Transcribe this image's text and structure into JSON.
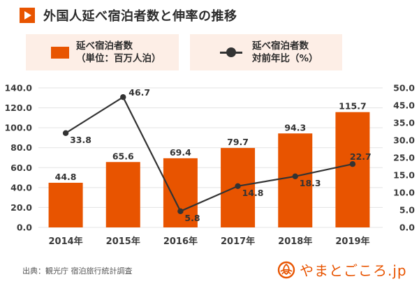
{
  "title": "外国人延べ宿泊者数と伸率の推移",
  "title_icon": "play-triangle-icon",
  "legend": {
    "bar": {
      "line1": "延べ宿泊者数",
      "line2": "（単位：百万人泊）"
    },
    "line": {
      "line1": "延べ宿泊者数",
      "line2": "対前年比（%）"
    }
  },
  "colors": {
    "bar": "#e85400",
    "line": "#333333",
    "legend_bg": "#fdeee6",
    "grid": "#e3e3e3"
  },
  "source": "出典：観光庁 宿泊旅行統計調査",
  "logo": {
    "icon": "yamatogokoro-logo-icon",
    "text": "やまとごころ.jp"
  },
  "chart_data": {
    "type": "bar+line",
    "title": "外国人延べ宿泊者数と伸率の推移",
    "categories": [
      "2014年",
      "2015年",
      "2016年",
      "2017年",
      "2018年",
      "2019年"
    ],
    "series": [
      {
        "name": "延べ宿泊者数（単位：百万人泊）",
        "type": "bar",
        "axis": "left",
        "values": [
          44.8,
          65.6,
          69.4,
          79.7,
          94.3,
          115.7
        ],
        "labels": [
          "44.8",
          "65.6",
          "69.4",
          "79.7",
          "94.3",
          "115.7"
        ]
      },
      {
        "name": "延べ宿泊者数 対前年比（%）",
        "type": "line",
        "axis": "right",
        "values": [
          33.8,
          46.7,
          5.8,
          14.8,
          18.3,
          22.7
        ],
        "labels": [
          "33.8",
          "46.7",
          "5.8",
          "14.8",
          "18.3",
          "22.7"
        ]
      }
    ],
    "y_left": {
      "lim": [
        0,
        140
      ],
      "ticks": [
        "0.0",
        "20.0",
        "40.0",
        "60.0",
        "80.0",
        "100.0",
        "120.0",
        "140.0"
      ],
      "tick_values": [
        0,
        20,
        40,
        60,
        80,
        100,
        120,
        140
      ]
    },
    "y_right": {
      "lim": [
        0,
        50
      ],
      "tick_labels_top_to_bottom": [
        "50.0",
        "45.0",
        "35.0",
        "30.0",
        "25.0",
        "15.0",
        "10.0",
        "5.0",
        "0.0"
      ]
    },
    "grid": true,
    "legend_position": "top"
  }
}
